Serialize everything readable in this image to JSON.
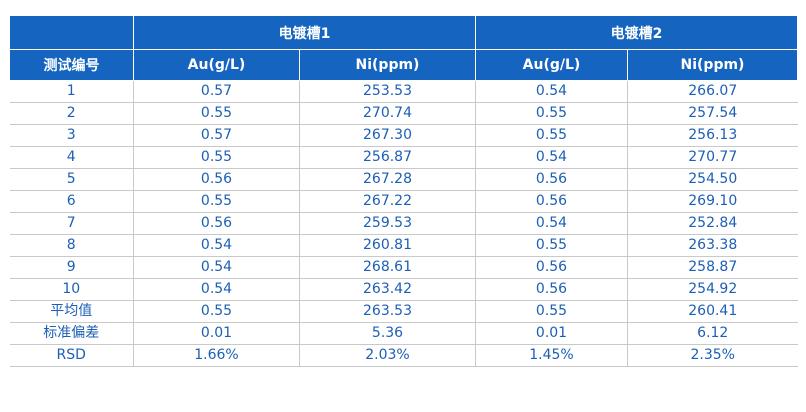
{
  "table": {
    "groups": [
      "电镀槽1",
      "电镀槽2"
    ],
    "headers": [
      "测试编号",
      "Au(g/L)",
      "Ni(ppm)",
      "Au(g/L)",
      "Ni(ppm)"
    ],
    "rows": [
      [
        "1",
        "0.57",
        "253.53",
        "0.54",
        "266.07"
      ],
      [
        "2",
        "0.55",
        "270.74",
        "0.55",
        "257.54"
      ],
      [
        "3",
        "0.57",
        "267.30",
        "0.55",
        "256.13"
      ],
      [
        "4",
        "0.55",
        "256.87",
        "0.54",
        "270.77"
      ],
      [
        "5",
        "0.56",
        "267.28",
        "0.56",
        "254.50"
      ],
      [
        "6",
        "0.55",
        "267.22",
        "0.56",
        "269.10"
      ],
      [
        "7",
        "0.56",
        "259.53",
        "0.54",
        "252.84"
      ],
      [
        "8",
        "0.54",
        "260.81",
        "0.55",
        "263.38"
      ],
      [
        "9",
        "0.54",
        "268.61",
        "0.56",
        "258.87"
      ],
      [
        "10",
        "0.54",
        "263.42",
        "0.56",
        "254.92"
      ],
      [
        "平均值",
        "0.55",
        "263.53",
        "0.55",
        "260.41"
      ],
      [
        "标准偏差",
        "0.01",
        "5.36",
        "0.01",
        "6.12"
      ],
      [
        "RSD",
        "1.66%",
        "2.03%",
        "1.45%",
        "2.35%"
      ]
    ]
  },
  "colors": {
    "header_bg": "#1565c0",
    "header_text": "#ffffff",
    "cell_text": "#1c5fb5",
    "grid": "#c9c9c9"
  }
}
